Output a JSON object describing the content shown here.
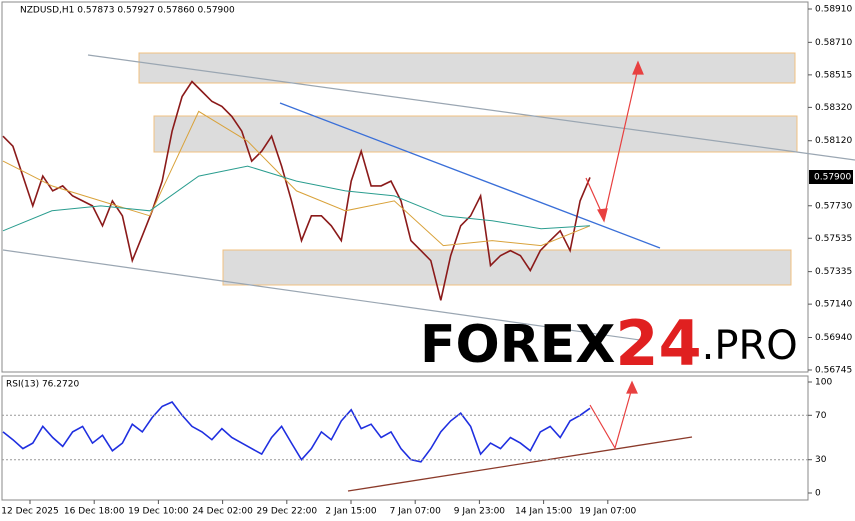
{
  "chart_data": [
    {
      "type": "line",
      "title": "NZDUSD,H1  0.57873 0.57927 0.57860 0.57900",
      "last_price_label": "0.57900",
      "series": [
        {
          "color": "#8b1a1a",
          "values": [
            0.58147,
            0.58087,
            0.57908,
            0.57729,
            0.57908,
            0.57819,
            0.57849,
            0.57789,
            0.57759,
            0.57729,
            0.5761,
            0.57759,
            0.5767,
            0.57401,
            0.5755,
            0.577,
            0.57878,
            0.58177,
            0.58385,
            0.58475,
            0.58415,
            0.58356,
            0.58326,
            0.58266,
            0.58177,
            0.57998,
            0.58057,
            0.58147,
            0.57968,
            0.57759,
            0.57521,
            0.5767,
            0.5767,
            0.5761,
            0.57521,
            0.57878,
            0.58057,
            0.57849,
            0.57849,
            0.57878,
            0.57759,
            0.57521,
            0.57461,
            0.57401,
            0.57163,
            0.57431,
            0.5761,
            0.5767,
            0.57789,
            0.57372,
            0.57431,
            0.57461,
            0.57431,
            0.57342,
            0.57461,
            0.57521,
            0.5758,
            0.57461,
            0.57759,
            0.579
          ]
        },
        {
          "color": "#d9a23a",
          "values": [
            0.57998,
            0.57849,
            0.57759,
            0.5767,
            0.58296,
            0.58117,
            0.57819,
            0.577,
            0.57759,
            0.57491,
            0.57521,
            0.57491,
            0.5761
          ]
        },
        {
          "color": "#2a9d8f",
          "values": [
            0.5758,
            0.577,
            0.57729,
            0.577,
            0.57908,
            0.57968,
            0.57878,
            0.57819,
            0.57789,
            0.5767,
            0.5764,
            0.57592,
            0.5761
          ]
        }
      ],
      "ylim": [
        0.56733,
        0.58952
      ],
      "yticks": [
        {
          "value": 0.5891,
          "label": "0.58910"
        },
        {
          "value": 0.5871,
          "label": "0.58710"
        },
        {
          "value": 0.58515,
          "label": "0.58515"
        },
        {
          "value": 0.5832,
          "label": "0.58320"
        },
        {
          "value": 0.5812,
          "label": "0.58120"
        },
        {
          "value": 0.5773,
          "label": "0.57730"
        },
        {
          "value": 0.57535,
          "label": "0.57535"
        },
        {
          "value": 0.57335,
          "label": "0.57335"
        },
        {
          "value": 0.5714,
          "label": "0.57140"
        },
        {
          "value": 0.5694,
          "label": "0.56940"
        },
        {
          "value": 0.56745,
          "label": "0.56745"
        }
      ],
      "x_labels": [
        "12 Dec 2025",
        "16 Dec 18:00",
        "19 Dec 10:00",
        "24 Dec 02:00",
        "29 Dec 22:00",
        "2 Jan 15:00",
        "7 Jan 07:00",
        "9 Jan 23:00",
        "14 Jan 15:00",
        "19 Jan 07:00"
      ],
      "logo": [
        "FOREX",
        "24",
        ".PRO"
      ]
    },
    {
      "type": "line",
      "title": "RSI(13) 76.2720",
      "series": [
        {
          "color": "#1f2fe0",
          "values": [
            55,
            48,
            40,
            45,
            60,
            50,
            42,
            55,
            60,
            45,
            52,
            38,
            45,
            62,
            55,
            68,
            78,
            82,
            70,
            60,
            55,
            48,
            58,
            50,
            45,
            40,
            35,
            50,
            60,
            45,
            30,
            40,
            55,
            48,
            65,
            75,
            58,
            62,
            50,
            55,
            40,
            30,
            28,
            40,
            55,
            65,
            72,
            60,
            35,
            45,
            40,
            50,
            45,
            38,
            55,
            60,
            50,
            65,
            70,
            76.272
          ]
        }
      ],
      "ylim": [
        0,
        100
      ],
      "yticks": [
        100,
        70,
        30,
        0
      ]
    }
  ]
}
